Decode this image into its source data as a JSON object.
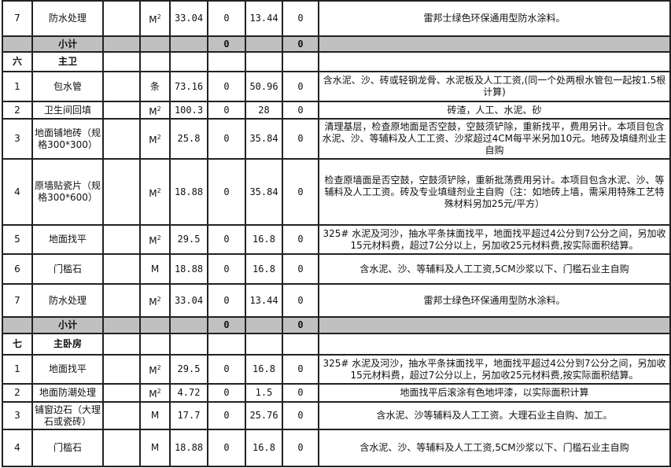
{
  "unit_m2_base": "M",
  "unit_m2_sup": "2",
  "rows": [
    {
      "type": "item",
      "no": "7",
      "name": "防水处理",
      "unit": "m2",
      "qty": "33.04",
      "amt1": "0",
      "price": "13.44",
      "amt2": "0",
      "desc": "雷邦士绿色环保通用型防水涂料。"
    },
    {
      "type": "subtotal",
      "name": "小计",
      "amt1": "0",
      "amt2": "0"
    },
    {
      "type": "section",
      "no": "六",
      "name": "主卫"
    },
    {
      "type": "item",
      "no": "1",
      "name": "包水管",
      "unit": "条",
      "qty": "73.16",
      "amt1": "0",
      "price": "50.96",
      "amt2": "0",
      "desc": "含水泥、沙、砖或轻钢龙骨、水泥板及人工工资,(同一个处两根水管包一起按1.5根计算)"
    },
    {
      "type": "item",
      "no": "2",
      "name": "卫生间回填",
      "unit": "m2",
      "qty": "100.3",
      "amt1": "0",
      "price": "28",
      "amt2": "0",
      "desc": "砖渣，人工、水泥、砂"
    },
    {
      "type": "item",
      "no": "3",
      "name": "地面铺地砖（规格300*300）",
      "unit": "m2",
      "qty": "25.8",
      "amt1": "0",
      "price": "35.84",
      "amt2": "0",
      "desc": "清理基层，检查原地面是否空鼓，空鼓须铲除，重新找平，费用另计。本项目包含水泥、沙、等辅料及人工工资、沙浆超过4CM每平米另加10元。地砖及填缝剂业主自购"
    },
    {
      "type": "item",
      "no": "4",
      "name": "原墙贴瓷片（规格300*600）",
      "unit": "m2",
      "qty": "18.88",
      "amt1": "0",
      "price": "35.84",
      "amt2": "0",
      "desc": "检查原墙面是否空鼓，空鼓须铲除，重新批荡费用另计。本项目包含水泥、沙、等辅料及人工工资。砖及专业填缝剂业主自购（注：如地砖上墙，需采用特殊工艺特殊材料另加25元/平方）"
    },
    {
      "type": "item",
      "no": "5",
      "name": "地面找平",
      "unit": "m2",
      "qty": "29.5",
      "amt1": "0",
      "price": "16.8",
      "amt2": "0",
      "desc": "325# 水泥及河沙，抽水平条抹面找平，地面找平超过4公分到7公分之间，另加收15元材料费，超过7公分以上，另加收25元材料费,按实际面积结算。"
    },
    {
      "type": "item",
      "no": "6",
      "name": "门槛石",
      "unit": "M",
      "qty": "18.88",
      "amt1": "0",
      "price": "16.8",
      "amt2": "0",
      "desc": "含水泥、沙、等辅料及人工工资,5CM沙浆以下、门槛石业主自购"
    },
    {
      "type": "item",
      "no": "7",
      "name": "防水处理",
      "unit": "m2",
      "qty": "33.04",
      "amt1": "0",
      "price": "13.44",
      "amt2": "0",
      "desc": "雷邦士绿色环保通用型防水涂料。"
    },
    {
      "type": "subtotal",
      "name": "小计",
      "amt1": "0",
      "amt2": "0"
    },
    {
      "type": "section",
      "no": "七",
      "name": "主卧房"
    },
    {
      "type": "item",
      "no": "1",
      "name": "地面找平",
      "unit": "m2",
      "qty": "29.5",
      "amt1": "0",
      "price": "16.8",
      "amt2": "0",
      "desc": "325# 水泥及河沙，抽水平条抹面找平，地面找平超过4公分到7公分之间，另加收15元材料费，超过7公分以上，另加收25元材料费,按实际面积结算。"
    },
    {
      "type": "item",
      "no": "2",
      "name": "地面防潮处理",
      "unit": "m2",
      "qty": "4.72",
      "amt1": "0",
      "price": "1.5",
      "amt2": "0",
      "desc": "地面找平后滚涂有色地坪漆，以实际面积计算"
    },
    {
      "type": "item",
      "no": "3",
      "name": "铺窗边石（大理石或瓷砖）",
      "unit": "M",
      "qty": "17.7",
      "amt1": "0",
      "price": "25.76",
      "amt2": "0",
      "desc": "含水泥、沙等辅料及人工工资。大理石业主自购、加工。"
    },
    {
      "type": "item",
      "no": "4",
      "name": "门槛石",
      "unit": "M",
      "qty": "18.88",
      "amt1": "0",
      "price": "16.8",
      "amt2": "0",
      "desc": "含水泥、沙、等辅料及人工工资,5CM沙浆以下、门槛石业主自购"
    }
  ]
}
